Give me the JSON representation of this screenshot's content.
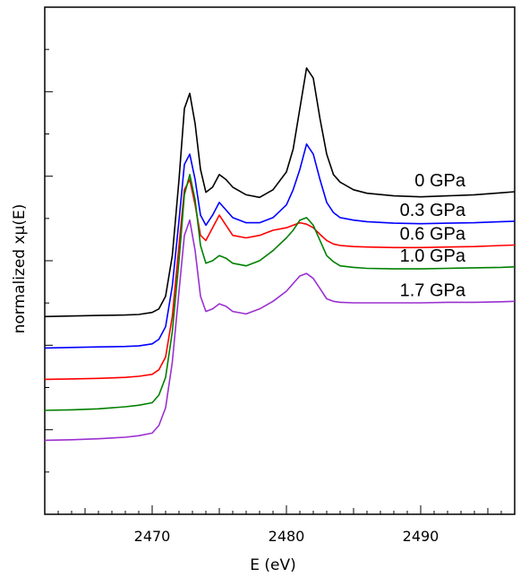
{
  "chart_data": {
    "type": "line",
    "xlabel": "E (eV)",
    "ylabel": "normalized xμ(E)",
    "xlim": [
      2462,
      2497
    ],
    "ylim": [
      0,
      1
    ],
    "x_ticks": [
      "2470",
      "2480",
      "2490"
    ],
    "x_tick_values": [
      2470,
      2480,
      2490
    ],
    "grid": false,
    "series": [
      {
        "name": "0 GPa",
        "color": "#000000",
        "points": [
          [
            2462,
            0.39
          ],
          [
            2464,
            0.391
          ],
          [
            2466,
            0.392
          ],
          [
            2468,
            0.393
          ],
          [
            2469,
            0.394
          ],
          [
            2470,
            0.398
          ],
          [
            2470.5,
            0.405
          ],
          [
            2471,
            0.43
          ],
          [
            2471.5,
            0.51
          ],
          [
            2472,
            0.66
          ],
          [
            2472.4,
            0.8
          ],
          [
            2472.8,
            0.83
          ],
          [
            2473.2,
            0.77
          ],
          [
            2473.6,
            0.68
          ],
          [
            2474,
            0.635
          ],
          [
            2474.5,
            0.645
          ],
          [
            2475,
            0.67
          ],
          [
            2475.5,
            0.66
          ],
          [
            2476,
            0.645
          ],
          [
            2477,
            0.63
          ],
          [
            2478,
            0.625
          ],
          [
            2479,
            0.64
          ],
          [
            2480,
            0.675
          ],
          [
            2480.5,
            0.72
          ],
          [
            2481,
            0.8
          ],
          [
            2481.5,
            0.88
          ],
          [
            2482,
            0.86
          ],
          [
            2482.5,
            0.78
          ],
          [
            2483,
            0.71
          ],
          [
            2483.5,
            0.67
          ],
          [
            2484,
            0.655
          ],
          [
            2485,
            0.64
          ],
          [
            2486,
            0.633
          ],
          [
            2488,
            0.628
          ],
          [
            2490,
            0.626
          ],
          [
            2492,
            0.628
          ],
          [
            2494,
            0.63
          ],
          [
            2496,
            0.634
          ],
          [
            2497,
            0.636
          ]
        ]
      },
      {
        "name": "0.3 GPa",
        "color": "#0000ff",
        "points": [
          [
            2462,
            0.328
          ],
          [
            2464,
            0.329
          ],
          [
            2466,
            0.33
          ],
          [
            2468,
            0.331
          ],
          [
            2469,
            0.332
          ],
          [
            2470,
            0.336
          ],
          [
            2470.5,
            0.345
          ],
          [
            2471,
            0.37
          ],
          [
            2471.5,
            0.45
          ],
          [
            2472,
            0.58
          ],
          [
            2472.4,
            0.69
          ],
          [
            2472.8,
            0.71
          ],
          [
            2473.2,
            0.66
          ],
          [
            2473.6,
            0.59
          ],
          [
            2474,
            0.57
          ],
          [
            2474.5,
            0.59
          ],
          [
            2475,
            0.615
          ],
          [
            2475.5,
            0.6
          ],
          [
            2476,
            0.585
          ],
          [
            2477,
            0.575
          ],
          [
            2478,
            0.575
          ],
          [
            2479,
            0.585
          ],
          [
            2480,
            0.61
          ],
          [
            2480.5,
            0.64
          ],
          [
            2481,
            0.68
          ],
          [
            2481.5,
            0.73
          ],
          [
            2482,
            0.71
          ],
          [
            2482.5,
            0.66
          ],
          [
            2483,
            0.615
          ],
          [
            2483.5,
            0.595
          ],
          [
            2484,
            0.585
          ],
          [
            2485,
            0.58
          ],
          [
            2486,
            0.577
          ],
          [
            2488,
            0.574
          ],
          [
            2490,
            0.573
          ],
          [
            2492,
            0.574
          ],
          [
            2494,
            0.575
          ],
          [
            2496,
            0.577
          ],
          [
            2497,
            0.578
          ]
        ]
      },
      {
        "name": "0.6 GPa",
        "color": "#ff0000",
        "points": [
          [
            2462,
            0.266
          ],
          [
            2464,
            0.267
          ],
          [
            2466,
            0.268
          ],
          [
            2468,
            0.27
          ],
          [
            2469,
            0.272
          ],
          [
            2470,
            0.276
          ],
          [
            2470.5,
            0.285
          ],
          [
            2471,
            0.31
          ],
          [
            2471.5,
            0.39
          ],
          [
            2472,
            0.53
          ],
          [
            2472.4,
            0.64
          ],
          [
            2472.8,
            0.66
          ],
          [
            2473.2,
            0.61
          ],
          [
            2473.6,
            0.55
          ],
          [
            2474,
            0.54
          ],
          [
            2474.5,
            0.565
          ],
          [
            2475,
            0.59
          ],
          [
            2475.5,
            0.57
          ],
          [
            2476,
            0.55
          ],
          [
            2477,
            0.545
          ],
          [
            2478,
            0.55
          ],
          [
            2479,
            0.56
          ],
          [
            2480,
            0.565
          ],
          [
            2480.5,
            0.57
          ],
          [
            2481,
            0.575
          ],
          [
            2481.5,
            0.572
          ],
          [
            2482,
            0.565
          ],
          [
            2482.5,
            0.552
          ],
          [
            2483,
            0.54
          ],
          [
            2483.5,
            0.533
          ],
          [
            2484,
            0.53
          ],
          [
            2485,
            0.528
          ],
          [
            2486,
            0.527
          ],
          [
            2488,
            0.526
          ],
          [
            2490,
            0.526
          ],
          [
            2492,
            0.527
          ],
          [
            2494,
            0.528
          ],
          [
            2496,
            0.53
          ],
          [
            2497,
            0.531
          ]
        ]
      },
      {
        "name": "1.0 GPa",
        "color": "#008000",
        "points": [
          [
            2462,
            0.205
          ],
          [
            2464,
            0.206
          ],
          [
            2466,
            0.208
          ],
          [
            2468,
            0.212
          ],
          [
            2469,
            0.215
          ],
          [
            2470,
            0.22
          ],
          [
            2470.5,
            0.235
          ],
          [
            2471,
            0.27
          ],
          [
            2471.5,
            0.36
          ],
          [
            2472,
            0.5
          ],
          [
            2472.4,
            0.63
          ],
          [
            2472.8,
            0.67
          ],
          [
            2473.2,
            0.62
          ],
          [
            2473.6,
            0.53
          ],
          [
            2474,
            0.495
          ],
          [
            2474.5,
            0.5
          ],
          [
            2475,
            0.51
          ],
          [
            2475.5,
            0.505
          ],
          [
            2476,
            0.495
          ],
          [
            2477,
            0.49
          ],
          [
            2478,
            0.5
          ],
          [
            2479,
            0.52
          ],
          [
            2480,
            0.545
          ],
          [
            2480.5,
            0.56
          ],
          [
            2481,
            0.58
          ],
          [
            2481.5,
            0.585
          ],
          [
            2482,
            0.57
          ],
          [
            2482.5,
            0.54
          ],
          [
            2483,
            0.51
          ],
          [
            2483.5,
            0.498
          ],
          [
            2484,
            0.49
          ],
          [
            2485,
            0.487
          ],
          [
            2486,
            0.485
          ],
          [
            2488,
            0.484
          ],
          [
            2490,
            0.484
          ],
          [
            2492,
            0.485
          ],
          [
            2494,
            0.486
          ],
          [
            2496,
            0.487
          ],
          [
            2497,
            0.488
          ]
        ]
      },
      {
        "name": "1.7 GPa",
        "color": "#9b30d0",
        "points": [
          [
            2462,
            0.146
          ],
          [
            2464,
            0.147
          ],
          [
            2466,
            0.149
          ],
          [
            2468,
            0.152
          ],
          [
            2469,
            0.155
          ],
          [
            2470,
            0.16
          ],
          [
            2470.5,
            0.175
          ],
          [
            2471,
            0.21
          ],
          [
            2471.5,
            0.3
          ],
          [
            2472,
            0.44
          ],
          [
            2472.4,
            0.55
          ],
          [
            2472.8,
            0.58
          ],
          [
            2473.2,
            0.52
          ],
          [
            2473.6,
            0.43
          ],
          [
            2474,
            0.4
          ],
          [
            2474.5,
            0.405
          ],
          [
            2475,
            0.415
          ],
          [
            2475.5,
            0.41
          ],
          [
            2476,
            0.4
          ],
          [
            2477,
            0.395
          ],
          [
            2478,
            0.405
          ],
          [
            2479,
            0.42
          ],
          [
            2480,
            0.44
          ],
          [
            2480.5,
            0.455
          ],
          [
            2481,
            0.47
          ],
          [
            2481.5,
            0.475
          ],
          [
            2482,
            0.465
          ],
          [
            2482.5,
            0.445
          ],
          [
            2483,
            0.425
          ],
          [
            2483.5,
            0.42
          ],
          [
            2484,
            0.418
          ],
          [
            2485,
            0.417
          ],
          [
            2486,
            0.417
          ],
          [
            2488,
            0.417
          ],
          [
            2490,
            0.417
          ],
          [
            2492,
            0.418
          ],
          [
            2494,
            0.418
          ],
          [
            2496,
            0.419
          ],
          [
            2497,
            0.42
          ]
        ]
      }
    ]
  }
}
